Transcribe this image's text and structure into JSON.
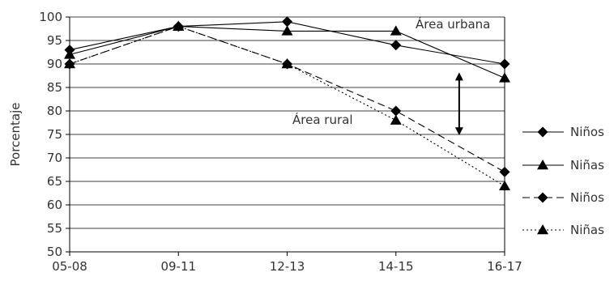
{
  "chart_data": {
    "type": "line",
    "title": "",
    "xlabel": "",
    "ylabel": "Porcentaje",
    "categories": [
      "05-08",
      "09-11",
      "12-13",
      "14-15",
      "16-17"
    ],
    "ylim": [
      50,
      100
    ],
    "yticks": [
      50,
      55,
      60,
      65,
      70,
      75,
      80,
      85,
      90,
      95,
      100
    ],
    "grid": true,
    "legend_position": "right",
    "series": [
      {
        "name": "Niños",
        "group": "Área urbana",
        "marker": "diamond",
        "dash": "solid",
        "values": [
          93,
          98,
          99,
          94,
          90
        ]
      },
      {
        "name": "Niñas",
        "group": "Área urbana",
        "marker": "triangle",
        "dash": "solid",
        "values": [
          92,
          98,
          97,
          97,
          87
        ]
      },
      {
        "name": "Niños",
        "group": "Área rural",
        "marker": "diamond",
        "dash": "dashed",
        "values": [
          90,
          98,
          90,
          80,
          67
        ]
      },
      {
        "name": "Niñas",
        "group": "Área rural",
        "marker": "triangle",
        "dash": "dotted",
        "values": [
          90,
          98,
          90,
          78,
          64
        ]
      }
    ],
    "annotations": [
      {
        "text": "Área urbana"
      },
      {
        "text": "Área rural"
      }
    ],
    "gap_arrow": {
      "category": "16-17",
      "from": 87,
      "to": 76
    },
    "colors": {
      "line": "#000000",
      "text": "#333333"
    }
  }
}
